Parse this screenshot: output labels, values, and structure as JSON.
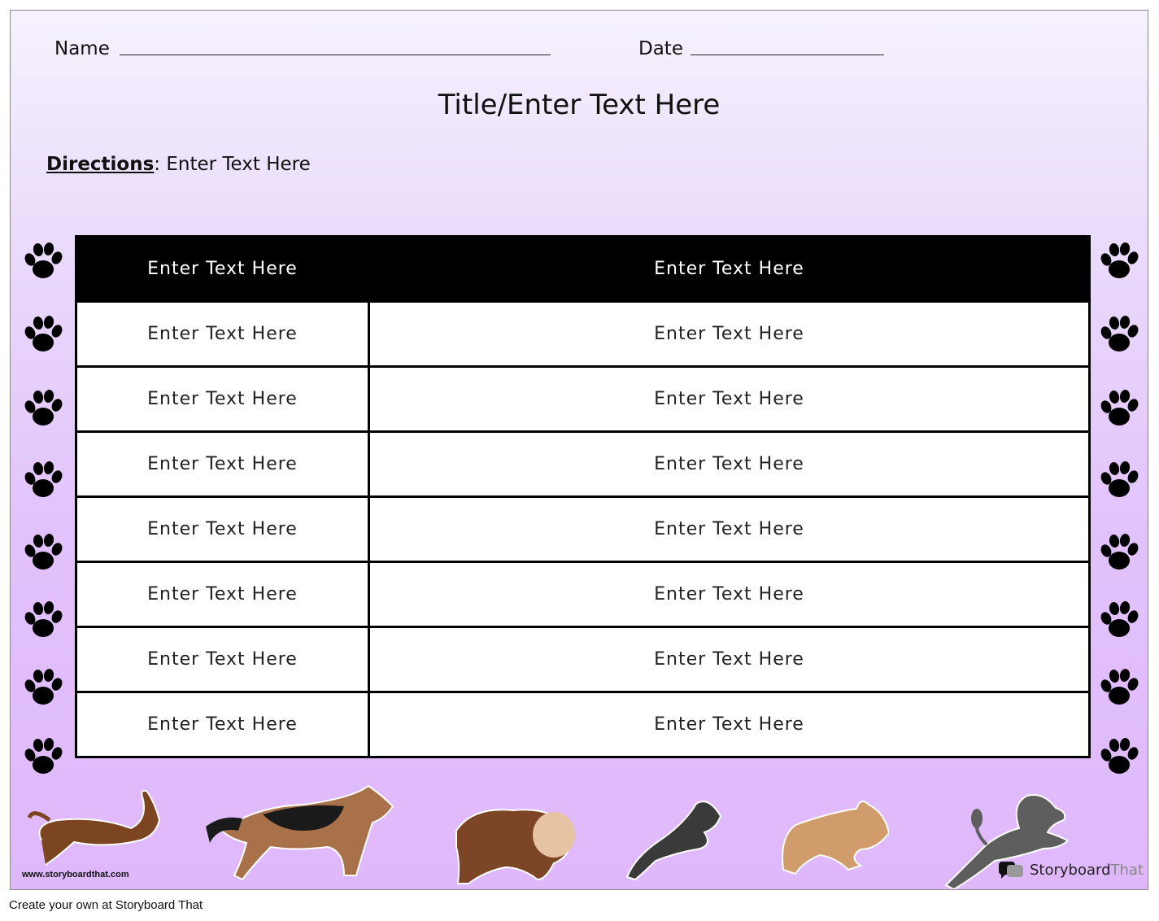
{
  "header": {
    "name_label": "Name",
    "date_label": "Date"
  },
  "title": "Title/Enter Text Here",
  "directions": {
    "label": "Directions",
    "separator": ":",
    "text": "Enter Text Here"
  },
  "table": {
    "header": [
      "Enter Text Here",
      "Enter Text Here"
    ],
    "rows": [
      [
        "Enter Text Here",
        "Enter Text Here"
      ],
      [
        "Enter Text Here",
        "Enter Text Here"
      ],
      [
        "Enter Text Here",
        "Enter Text Here"
      ],
      [
        "Enter Text Here",
        "Enter Text Here"
      ],
      [
        "Enter Text Here",
        "Enter Text Here"
      ],
      [
        "Enter Text Here",
        "Enter Text Here"
      ],
      [
        "Enter Text Here",
        "Enter Text Here"
      ]
    ]
  },
  "decorations": {
    "border_icon": "paw-print-icon",
    "paw_count_per_side": 8,
    "dogs": [
      "dachshund",
      "german-shepherd",
      "bulldog",
      "schnauzer",
      "french-bulldog",
      "poodle"
    ]
  },
  "watermark": "www.storyboardthat.com",
  "logo": {
    "part1": "Storyboard",
    "part2": "That"
  },
  "footer": "Create your own at Storyboard That",
  "colors": {
    "background_top": "#f6f2fd",
    "background_bottom": "#dfb8fb",
    "table_header": "#000000"
  }
}
